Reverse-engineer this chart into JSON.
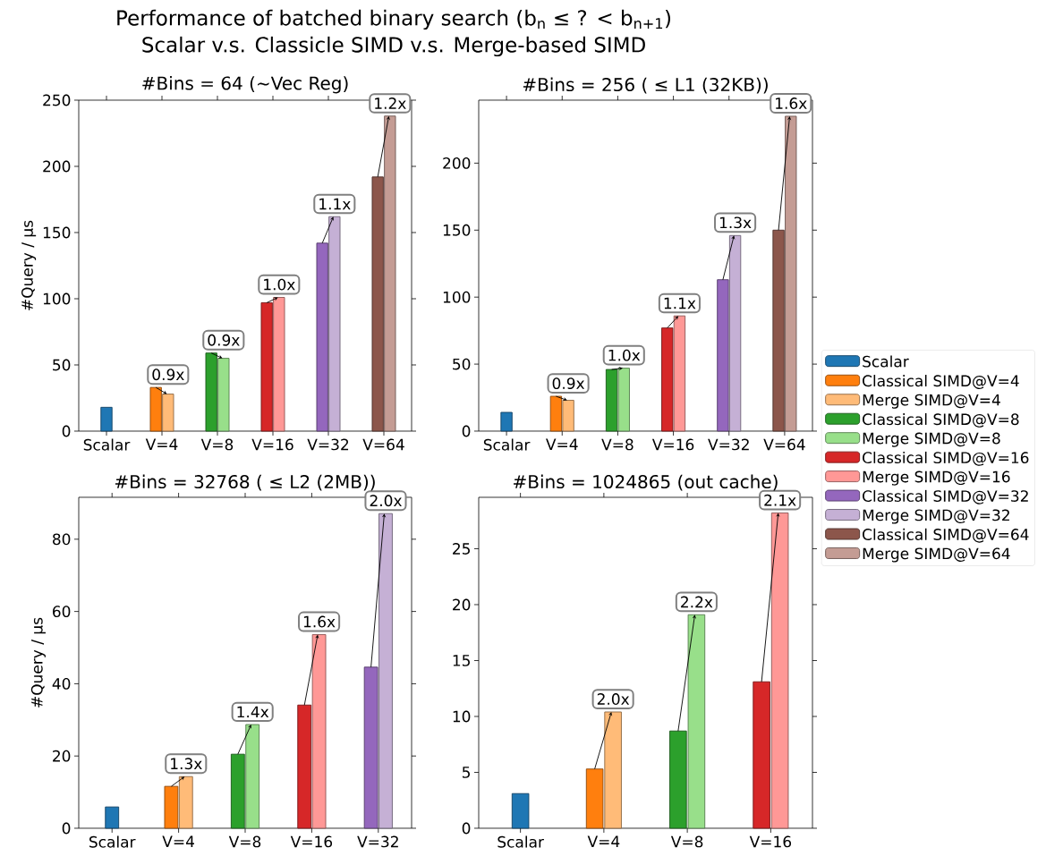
{
  "chart_data": [
    {
      "type": "bar",
      "title": "Performance of batched binary search (b$_{n}$ ≤ ? < b$_{n+1}$)",
      "subtitle": "Scalar v.s. Classicle SIMD v.s. Merge-based SIMD",
      "ylabel": "#Query / μs",
      "categories": [
        "Scalar",
        "V=4",
        "V=8",
        "V=16",
        "V=32",
        "V=64"
      ],
      "series": [
        {
          "name": "Scalar",
          "color": "#1f77b4",
          "values": [
            18,
            null,
            null,
            null,
            null,
            null
          ]
        },
        {
          "name": "Classical SIMD@V=4",
          "color": "#ff7f0e",
          "values": [
            null,
            33,
            null,
            null,
            null,
            null
          ]
        },
        {
          "name": "Merge SIMD@V=4",
          "color": "#ffbb78",
          "values": [
            null,
            28,
            null,
            null,
            null,
            null
          ]
        },
        {
          "name": "Classical SIMD@V=8",
          "color": "#2ca02c",
          "values": [
            null,
            null,
            59,
            null,
            null,
            null
          ]
        },
        {
          "name": "Merge SIMD@V=8",
          "color": "#98df8a",
          "values": [
            null,
            null,
            55,
            null,
            null,
            null
          ]
        },
        {
          "name": "Classical SIMD@V=16",
          "color": "#d62728",
          "values": [
            null,
            null,
            null,
            97,
            null,
            null
          ]
        },
        {
          "name": "Merge SIMD@V=16",
          "color": "#ff9896",
          "values": [
            null,
            null,
            null,
            101,
            null,
            null
          ]
        },
        {
          "name": "Classical SIMD@V=32",
          "color": "#9467bd",
          "values": [
            null,
            null,
            null,
            null,
            142,
            null
          ]
        },
        {
          "name": "Merge SIMD@V=32",
          "color": "#c5b0d5",
          "values": [
            null,
            null,
            null,
            null,
            162,
            null
          ]
        },
        {
          "name": "Classical SIMD@V=64",
          "color": "#8c564b",
          "values": [
            null,
            null,
            null,
            null,
            null,
            192
          ]
        },
        {
          "name": "Merge SIMD@V=64",
          "color": "#c49c94",
          "values": [
            null,
            null,
            null,
            null,
            null,
            238
          ]
        }
      ],
      "annotations": [
        "#Bins = 64 (~Vec Reg)",
        {
          "text": "0.9x",
          "x": "V=4",
          "y": 28
        },
        {
          "text": "0.9x",
          "x": "V=8",
          "y": 55
        },
        {
          "text": "1.0x",
          "x": "V=16",
          "y": 101
        },
        {
          "text": "1.1x",
          "x": "V=32",
          "y": 162
        },
        {
          "text": "1.2x",
          "x": "V=64",
          "y": 238
        }
      ],
      "ylim": [
        0,
        250
      ],
      "yticks": [
        0,
        50,
        100,
        150,
        200,
        250
      ],
      "legend": "right"
    },
    {
      "type": "bar",
      "title": "#Bins = 256 ( ≤ L1 (32KB))",
      "categories": [
        "Scalar",
        "V=4",
        "V=8",
        "V=16",
        "V=32",
        "V=64"
      ],
      "series": [
        {
          "color": "#1f77b4",
          "values": [
            14,
            null,
            null,
            null,
            null,
            null
          ]
        },
        {
          "color": "#ff7f0e",
          "values": [
            null,
            26,
            null,
            null,
            null,
            null
          ]
        },
        {
          "color": "#ffbb78",
          "values": [
            null,
            23,
            null,
            null,
            null,
            null
          ]
        },
        {
          "color": "#2ca02c",
          "values": [
            null,
            null,
            46,
            null,
            null,
            null
          ]
        },
        {
          "color": "#98df8a",
          "values": [
            null,
            null,
            47,
            null,
            null,
            null
          ]
        },
        {
          "color": "#d62728",
          "values": [
            null,
            null,
            null,
            77,
            null,
            null
          ]
        },
        {
          "color": "#ff9896",
          "values": [
            null,
            null,
            null,
            86,
            null,
            null
          ]
        },
        {
          "color": "#9467bd",
          "values": [
            null,
            null,
            null,
            null,
            113,
            null
          ]
        },
        {
          "color": "#c5b0d5",
          "values": [
            null,
            null,
            null,
            null,
            146,
            null
          ]
        },
        {
          "color": "#8c564b",
          "values": [
            null,
            null,
            null,
            null,
            null,
            150
          ]
        },
        {
          "color": "#c49c94",
          "values": [
            null,
            null,
            null,
            null,
            null,
            235
          ]
        }
      ],
      "annotations": [
        {
          "text": "0.9x",
          "x": "V=4",
          "y": 23
        },
        {
          "text": "1.0x",
          "x": "V=8",
          "y": 47
        },
        {
          "text": "1.1x",
          "x": "V=16",
          "y": 86
        },
        {
          "text": "1.3x",
          "x": "V=32",
          "y": 146
        },
        {
          "text": "1.6x",
          "x": "V=64",
          "y": 235
        }
      ],
      "ylim": [
        0,
        247
      ],
      "yticks": [
        0,
        50,
        100,
        150,
        200
      ]
    },
    {
      "type": "bar",
      "title": "#Bins = 32768 ( ≤ L2 (2MB))",
      "ylabel": "#Query / μs",
      "categories": [
        "Scalar",
        "V=4",
        "V=8",
        "V=16",
        "V=32"
      ],
      "series": [
        {
          "color": "#1f77b4",
          "values": [
            5.9,
            null,
            null,
            null,
            null
          ]
        },
        {
          "color": "#ff7f0e",
          "values": [
            null,
            11.6,
            null,
            null,
            null
          ]
        },
        {
          "color": "#ffbb78",
          "values": [
            null,
            14.3,
            null,
            null,
            null
          ]
        },
        {
          "color": "#2ca02c",
          "values": [
            null,
            null,
            20.5,
            null,
            null
          ]
        },
        {
          "color": "#98df8a",
          "values": [
            null,
            null,
            28.7,
            null,
            null
          ]
        },
        {
          "color": "#d62728",
          "values": [
            null,
            null,
            null,
            34.1,
            null
          ]
        },
        {
          "color": "#ff9896",
          "values": [
            null,
            null,
            null,
            53.6,
            null
          ]
        },
        {
          "color": "#9467bd",
          "values": [
            null,
            null,
            null,
            null,
            44.6
          ]
        },
        {
          "color": "#c5b0d5",
          "values": [
            null,
            null,
            null,
            null,
            87.1
          ]
        }
      ],
      "annotations": [
        {
          "text": "1.3x",
          "x": "V=4",
          "y": 14.3
        },
        {
          "text": "1.4x",
          "x": "V=8",
          "y": 28.7
        },
        {
          "text": "1.6x",
          "x": "V=16",
          "y": 53.6
        },
        {
          "text": "2.0x",
          "x": "V=32",
          "y": 87.1
        }
      ],
      "ylim": [
        0,
        91.6
      ],
      "yticks": [
        0,
        20,
        40,
        60,
        80
      ]
    },
    {
      "type": "bar",
      "title": "#Bins = 1024865 (out cache)",
      "categories": [
        "Scalar",
        "V=4",
        "V=8",
        "V=16"
      ],
      "series": [
        {
          "color": "#1f77b4",
          "values": [
            3.1,
            null,
            null,
            null
          ]
        },
        {
          "color": "#ff7f0e",
          "values": [
            null,
            5.3,
            null,
            null
          ]
        },
        {
          "color": "#ffbb78",
          "values": [
            null,
            10.4,
            null,
            null
          ]
        },
        {
          "color": "#2ca02c",
          "values": [
            null,
            null,
            8.7,
            null
          ]
        },
        {
          "color": "#98df8a",
          "values": [
            null,
            null,
            19.1,
            null
          ]
        },
        {
          "color": "#d62728",
          "values": [
            null,
            null,
            null,
            13.1
          ]
        },
        {
          "color": "#ff9896",
          "values": [
            null,
            null,
            null,
            28.2
          ]
        }
      ],
      "annotations": [
        {
          "text": "2.0x",
          "x": "V=4",
          "y": 10.4
        },
        {
          "text": "2.2x",
          "x": "V=8",
          "y": 19.1
        },
        {
          "text": "2.1x",
          "x": "V=16",
          "y": 28.2
        }
      ],
      "ylim": [
        0,
        29.6
      ],
      "yticks": [
        0,
        5,
        10,
        15,
        20,
        25
      ]
    }
  ]
}
